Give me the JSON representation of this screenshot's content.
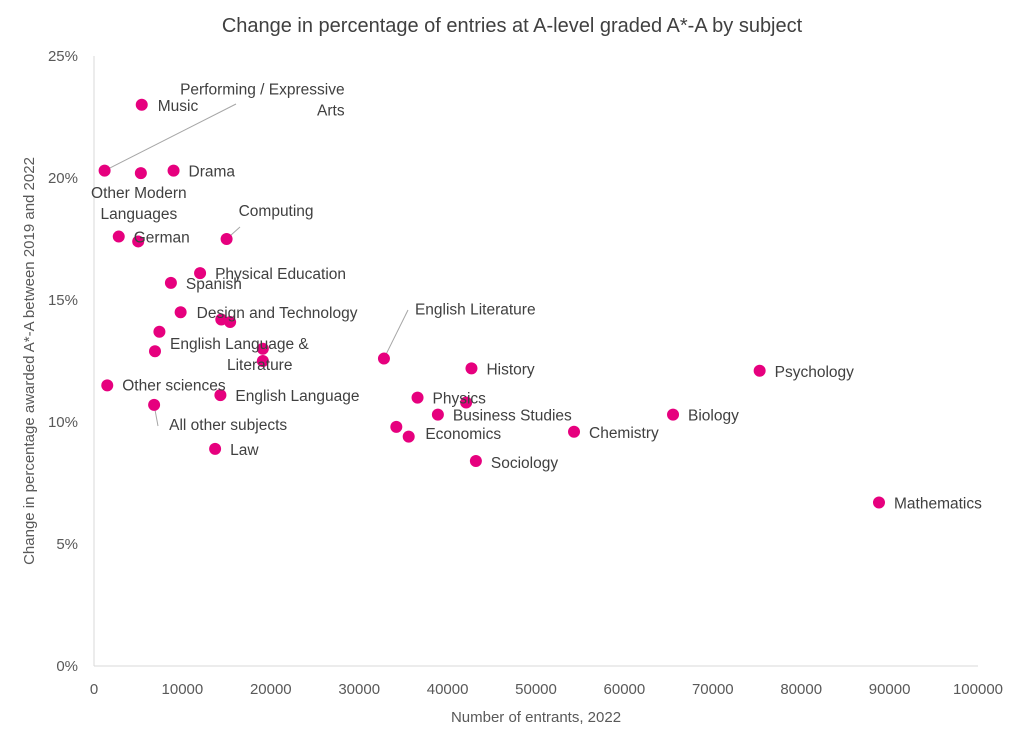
{
  "chart_data": {
    "type": "scatter",
    "title": "Change in percentage of entries at A-level graded A*-A by subject",
    "xlabel": "Number of entrants, 2022",
    "ylabel": "Change in percentage awarded A*-A between 2019 and 2022",
    "xlim": [
      0,
      100000
    ],
    "ylim": [
      0,
      25
    ],
    "x_ticks": [
      "0",
      "10000",
      "20000",
      "30000",
      "40000",
      "50000",
      "60000",
      "70000",
      "80000",
      "90000",
      "100000"
    ],
    "y_ticks": [
      "0%",
      "5%",
      "10%",
      "15%",
      "20%",
      "25%"
    ],
    "grid": false,
    "marker_color": "#e6007e",
    "points": [
      {
        "label": "Performing / Expressive Arts",
        "x": 1200,
        "y": 20.3
      },
      {
        "label": "Music",
        "x": 5400,
        "y": 23.0
      },
      {
        "label": "Other Modern Languages",
        "x": 5300,
        "y": 20.2
      },
      {
        "label": "Drama",
        "x": 9000,
        "y": 20.3
      },
      {
        "label": "German",
        "x": 2800,
        "y": 17.6
      },
      {
        "label": "",
        "x": 5000,
        "y": 17.4
      },
      {
        "label": "Computing",
        "x": 15000,
        "y": 17.5
      },
      {
        "label": "Physical Education",
        "x": 12000,
        "y": 16.1
      },
      {
        "label": "Spanish",
        "x": 8700,
        "y": 15.7
      },
      {
        "label": "Design and Technology",
        "x": 9800,
        "y": 14.5
      },
      {
        "label": "",
        "x": 14400,
        "y": 14.2
      },
      {
        "label": "",
        "x": 15400,
        "y": 14.1
      },
      {
        "label": "",
        "x": 7400,
        "y": 13.7
      },
      {
        "label": "English Language & Literature",
        "x": 6900,
        "y": 12.9
      },
      {
        "label": "",
        "x": 19100,
        "y": 13.0
      },
      {
        "label": "",
        "x": 19100,
        "y": 12.5
      },
      {
        "label": "English Literature",
        "x": 32800,
        "y": 12.6
      },
      {
        "label": "History",
        "x": 42700,
        "y": 12.2
      },
      {
        "label": "Psychology",
        "x": 75300,
        "y": 12.1
      },
      {
        "label": "Other sciences",
        "x": 1500,
        "y": 11.5
      },
      {
        "label": "English Language",
        "x": 14300,
        "y": 11.1
      },
      {
        "label": "All other subjects",
        "x": 6800,
        "y": 10.7
      },
      {
        "label": "Physics",
        "x": 36600,
        "y": 11.0
      },
      {
        "label": "",
        "x": 42100,
        "y": 10.8
      },
      {
        "label": "Business Studies",
        "x": 38900,
        "y": 10.3
      },
      {
        "label": "Biology",
        "x": 65500,
        "y": 10.3
      },
      {
        "label": "Economics",
        "x": 34200,
        "y": 9.8
      },
      {
        "label": "",
        "x": 35600,
        "y": 9.4
      },
      {
        "label": "Chemistry",
        "x": 54300,
        "y": 9.6
      },
      {
        "label": "Law",
        "x": 13700,
        "y": 8.9
      },
      {
        "label": "Sociology",
        "x": 43200,
        "y": 8.4
      },
      {
        "label": "Mathematics",
        "x": 88800,
        "y": 6.7
      }
    ]
  }
}
